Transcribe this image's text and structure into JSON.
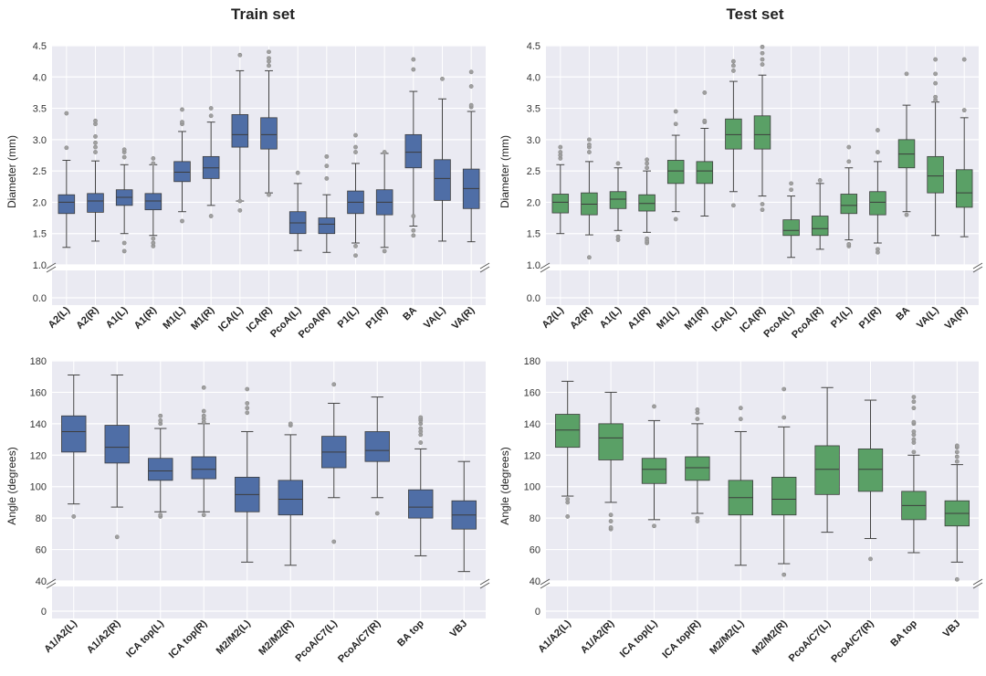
{
  "titles": {
    "train": "Train set",
    "test": "Test set"
  },
  "colors": {
    "train": "#4f6ea6",
    "test": "#5aa066",
    "background": "#eaeaf2",
    "grid": "#ffffff",
    "whisker": "#444444",
    "outlier": "#888888"
  },
  "chart_data": [
    {
      "type": "box",
      "title": "Train set",
      "ylabel": "Diameter (mm)",
      "ylim": [
        0,
        4.5
      ],
      "axis_break": [
        0,
        1.0
      ],
      "yticks": [
        "0.0",
        "1.0",
        "1.5",
        "2.0",
        "2.5",
        "3.0",
        "3.5",
        "4.0",
        "4.5"
      ],
      "color": "#4f6ea6",
      "categories": [
        "A2(L)",
        "A2(R)",
        "A1(L)",
        "A1(R)",
        "M1(L)",
        "M1(R)",
        "ICA(L)",
        "ICA(R)",
        "PcoA(L)",
        "PcoA(R)",
        "P1(L)",
        "P1(R)",
        "BA",
        "VA(L)",
        "VA(R)"
      ],
      "boxes": [
        {
          "low": 1.28,
          "q1": 1.82,
          "median": 2.0,
          "q3": 2.12,
          "high": 2.67,
          "outliers": [
            2.87,
            3.42
          ]
        },
        {
          "low": 1.38,
          "q1": 1.84,
          "median": 2.02,
          "q3": 2.14,
          "high": 2.66,
          "outliers": [
            2.8,
            2.88,
            2.95,
            3.05,
            3.25,
            3.3
          ]
        },
        {
          "low": 1.5,
          "q1": 1.95,
          "median": 2.08,
          "q3": 2.2,
          "high": 2.6,
          "outliers": [
            1.22,
            1.35,
            2.72,
            2.8,
            2.84
          ]
        },
        {
          "low": 1.47,
          "q1": 1.88,
          "median": 2.02,
          "q3": 2.14,
          "high": 2.6,
          "outliers": [
            1.3,
            1.35,
            1.42,
            2.62,
            2.7
          ]
        },
        {
          "low": 1.85,
          "q1": 2.33,
          "median": 2.48,
          "q3": 2.65,
          "high": 3.13,
          "outliers": [
            1.7,
            3.25,
            3.28,
            3.48
          ]
        },
        {
          "low": 1.95,
          "q1": 2.38,
          "median": 2.55,
          "q3": 2.73,
          "high": 3.28,
          "outliers": [
            1.78,
            3.38,
            3.5
          ]
        },
        {
          "low": 2.02,
          "q1": 2.88,
          "median": 3.08,
          "q3": 3.4,
          "high": 4.1,
          "outliers": [
            1.87,
            2.02,
            4.35
          ]
        },
        {
          "low": 2.15,
          "q1": 2.85,
          "median": 3.08,
          "q3": 3.35,
          "high": 4.1,
          "outliers": [
            2.12,
            4.18,
            4.25,
            4.3,
            4.4
          ]
        },
        {
          "low": 1.23,
          "q1": 1.5,
          "median": 1.67,
          "q3": 1.85,
          "high": 2.3,
          "outliers": [
            2.47
          ]
        },
        {
          "low": 1.2,
          "q1": 1.5,
          "median": 1.65,
          "q3": 1.75,
          "high": 2.12,
          "outliers": [
            2.38,
            2.58,
            2.73
          ]
        },
        {
          "low": 1.35,
          "q1": 1.82,
          "median": 2.0,
          "q3": 2.18,
          "high": 2.62,
          "outliers": [
            1.15,
            1.3,
            2.8,
            2.88,
            3.07
          ]
        },
        {
          "low": 1.28,
          "q1": 1.8,
          "median": 2.0,
          "q3": 2.2,
          "high": 2.78,
          "outliers": [
            1.22,
            2.8
          ]
        },
        {
          "low": 1.62,
          "q1": 2.55,
          "median": 2.8,
          "q3": 3.08,
          "high": 3.77,
          "outliers": [
            1.47,
            1.55,
            1.78,
            4.12,
            4.28
          ]
        },
        {
          "low": 1.38,
          "q1": 2.03,
          "median": 2.38,
          "q3": 2.68,
          "high": 3.65,
          "outliers": [
            3.97
          ]
        },
        {
          "low": 1.37,
          "q1": 1.9,
          "median": 2.22,
          "q3": 2.53,
          "high": 3.45,
          "outliers": [
            3.52,
            3.55,
            3.85,
            4.08
          ]
        }
      ]
    },
    {
      "type": "box",
      "title": "Test set",
      "ylabel": "Diameter (mm)",
      "ylim": [
        0,
        4.5
      ],
      "axis_break": [
        0,
        1.0
      ],
      "yticks": [
        "0.0",
        "1.0",
        "1.5",
        "2.0",
        "2.5",
        "3.0",
        "3.5",
        "4.0",
        "4.5"
      ],
      "color": "#5aa066",
      "categories": [
        "A2(L)",
        "A2(R)",
        "A1(L)",
        "A1(R)",
        "M1(L)",
        "M1(R)",
        "ICA(L)",
        "ICA(R)",
        "PcoA(L)",
        "PcoA(R)",
        "P1(L)",
        "P1(R)",
        "BA",
        "VA(L)",
        "VA(R)"
      ],
      "boxes": [
        {
          "low": 1.5,
          "q1": 1.83,
          "median": 2.0,
          "q3": 2.13,
          "high": 2.6,
          "outliers": [
            2.7,
            2.75,
            2.8,
            2.88
          ]
        },
        {
          "low": 1.48,
          "q1": 1.8,
          "median": 1.97,
          "q3": 2.15,
          "high": 2.65,
          "outliers": [
            1.12,
            2.8,
            2.88,
            2.92,
            3.0
          ]
        },
        {
          "low": 1.55,
          "q1": 1.9,
          "median": 2.05,
          "q3": 2.17,
          "high": 2.55,
          "outliers": [
            1.4,
            1.45,
            2.62
          ]
        },
        {
          "low": 1.52,
          "q1": 1.86,
          "median": 1.98,
          "q3": 2.12,
          "high": 2.5,
          "outliers": [
            1.35,
            1.38,
            1.42,
            2.55,
            2.62,
            2.68
          ]
        },
        {
          "low": 1.85,
          "q1": 2.3,
          "median": 2.5,
          "q3": 2.67,
          "high": 3.07,
          "outliers": [
            1.73,
            3.25,
            3.45
          ]
        },
        {
          "low": 1.78,
          "q1": 2.3,
          "median": 2.5,
          "q3": 2.65,
          "high": 3.18,
          "outliers": [
            3.28,
            3.3,
            3.75
          ]
        },
        {
          "low": 2.17,
          "q1": 2.85,
          "median": 3.08,
          "q3": 3.33,
          "high": 3.93,
          "outliers": [
            1.95,
            4.1,
            4.18,
            4.25
          ]
        },
        {
          "low": 2.1,
          "q1": 2.85,
          "median": 3.08,
          "q3": 3.38,
          "high": 4.03,
          "outliers": [
            1.88,
            1.97,
            4.2,
            4.28,
            4.38,
            4.48
          ]
        },
        {
          "low": 1.12,
          "q1": 1.47,
          "median": 1.55,
          "q3": 1.72,
          "high": 2.1,
          "outliers": [
            2.2,
            2.3
          ]
        },
        {
          "low": 1.25,
          "q1": 1.47,
          "median": 1.58,
          "q3": 1.78,
          "high": 2.3,
          "outliers": [
            2.35
          ]
        },
        {
          "low": 1.4,
          "q1": 1.82,
          "median": 1.95,
          "q3": 2.13,
          "high": 2.55,
          "outliers": [
            1.3,
            1.33,
            2.65,
            2.88
          ]
        },
        {
          "low": 1.35,
          "q1": 1.8,
          "median": 2.0,
          "q3": 2.17,
          "high": 2.65,
          "outliers": [
            1.2,
            1.25,
            2.8,
            3.15
          ]
        },
        {
          "low": 1.85,
          "q1": 2.55,
          "median": 2.77,
          "q3": 3.0,
          "high": 3.55,
          "outliers": [
            1.8,
            4.05
          ]
        },
        {
          "low": 1.47,
          "q1": 2.15,
          "median": 2.42,
          "q3": 2.73,
          "high": 3.6,
          "outliers": [
            3.63,
            3.68,
            3.9,
            4.05,
            4.28
          ]
        },
        {
          "low": 1.45,
          "q1": 1.92,
          "median": 2.15,
          "q3": 2.52,
          "high": 3.35,
          "outliers": [
            3.47,
            4.28
          ]
        }
      ]
    },
    {
      "type": "box",
      "title": "",
      "ylabel": "Angle (degrees)",
      "ylim": [
        0,
        180
      ],
      "axis_break": [
        0,
        40
      ],
      "yticks": [
        "0",
        "40",
        "60",
        "80",
        "100",
        "120",
        "140",
        "160",
        "180"
      ],
      "color": "#4f6ea6",
      "categories": [
        "A1/A2(L)",
        "A1/A2(R)",
        "ICA top(L)",
        "ICA top(R)",
        "M2/M2(L)",
        "M2/M2(R)",
        "PcoA/C7(L)",
        "PcoA/C7(R)",
        "BA top",
        "VBJ"
      ],
      "boxes": [
        {
          "low": 89,
          "q1": 122,
          "median": 135,
          "q3": 145,
          "high": 171,
          "outliers": [
            81
          ]
        },
        {
          "low": 87,
          "q1": 115,
          "median": 125,
          "q3": 139,
          "high": 171,
          "outliers": [
            68
          ]
        },
        {
          "low": 84,
          "q1": 104,
          "median": 110,
          "q3": 118,
          "high": 137,
          "outliers": [
            81,
            82,
            140,
            142,
            145
          ]
        },
        {
          "low": 84,
          "q1": 105,
          "median": 111,
          "q3": 119,
          "high": 140,
          "outliers": [
            82,
            141,
            143,
            145,
            148,
            163
          ]
        },
        {
          "low": 52,
          "q1": 84,
          "median": 95,
          "q3": 106,
          "high": 135,
          "outliers": [
            147,
            150,
            153,
            162
          ]
        },
        {
          "low": 50,
          "q1": 82,
          "median": 92,
          "q3": 104,
          "high": 133,
          "outliers": [
            139,
            140
          ]
        },
        {
          "low": 93,
          "q1": 112,
          "median": 122,
          "q3": 132,
          "high": 153,
          "outliers": [
            65,
            165
          ]
        },
        {
          "low": 93,
          "q1": 116,
          "median": 123,
          "q3": 135,
          "high": 157,
          "outliers": [
            83
          ]
        },
        {
          "low": 56,
          "q1": 80,
          "median": 87,
          "q3": 98,
          "high": 124,
          "outliers": [
            128,
            133,
            135,
            137,
            140,
            142,
            143,
            144
          ]
        },
        {
          "low": 46,
          "q1": 73,
          "median": 82,
          "q3": 91,
          "high": 116,
          "outliers": []
        }
      ]
    },
    {
      "type": "box",
      "title": "",
      "ylabel": "Angle (degrees)",
      "ylim": [
        0,
        180
      ],
      "axis_break": [
        0,
        40
      ],
      "yticks": [
        "0",
        "40",
        "60",
        "80",
        "100",
        "120",
        "140",
        "160",
        "180"
      ],
      "color": "#5aa066",
      "categories": [
        "A1/A2(L)",
        "A1/A2(R)",
        "ICA top(L)",
        "ICA top(R)",
        "M2/M2(L)",
        "M2/M2(R)",
        "PcoA/C7(L)",
        "PcoA/C7(R)",
        "BA top",
        "VBJ"
      ],
      "boxes": [
        {
          "low": 94,
          "q1": 125,
          "median": 136,
          "q3": 146,
          "high": 167,
          "outliers": [
            81,
            90,
            92
          ]
        },
        {
          "low": 90,
          "q1": 117,
          "median": 131,
          "q3": 140,
          "high": 160,
          "outliers": [
            73,
            74,
            78,
            82
          ]
        },
        {
          "low": 79,
          "q1": 102,
          "median": 111,
          "q3": 118,
          "high": 142,
          "outliers": [
            75,
            151
          ]
        },
        {
          "low": 83,
          "q1": 104,
          "median": 112,
          "q3": 119,
          "high": 140,
          "outliers": [
            78,
            80,
            143,
            147,
            149
          ]
        },
        {
          "low": 50,
          "q1": 82,
          "median": 93,
          "q3": 104,
          "high": 135,
          "outliers": [
            143,
            150
          ]
        },
        {
          "low": 51,
          "q1": 82,
          "median": 92,
          "q3": 106,
          "high": 138,
          "outliers": [
            44,
            144,
            162
          ]
        },
        {
          "low": 71,
          "q1": 95,
          "median": 111,
          "q3": 126,
          "high": 163,
          "outliers": []
        },
        {
          "low": 67,
          "q1": 97,
          "median": 111,
          "q3": 124,
          "high": 155,
          "outliers": [
            54
          ]
        },
        {
          "low": 58,
          "q1": 79,
          "median": 88,
          "q3": 97,
          "high": 120,
          "outliers": [
            122,
            128,
            130,
            133,
            135,
            140,
            141,
            150,
            154,
            157
          ]
        },
        {
          "low": 52,
          "q1": 75,
          "median": 83,
          "q3": 91,
          "high": 114,
          "outliers": [
            41,
            116,
            119,
            122,
            125,
            126
          ]
        }
      ]
    }
  ]
}
